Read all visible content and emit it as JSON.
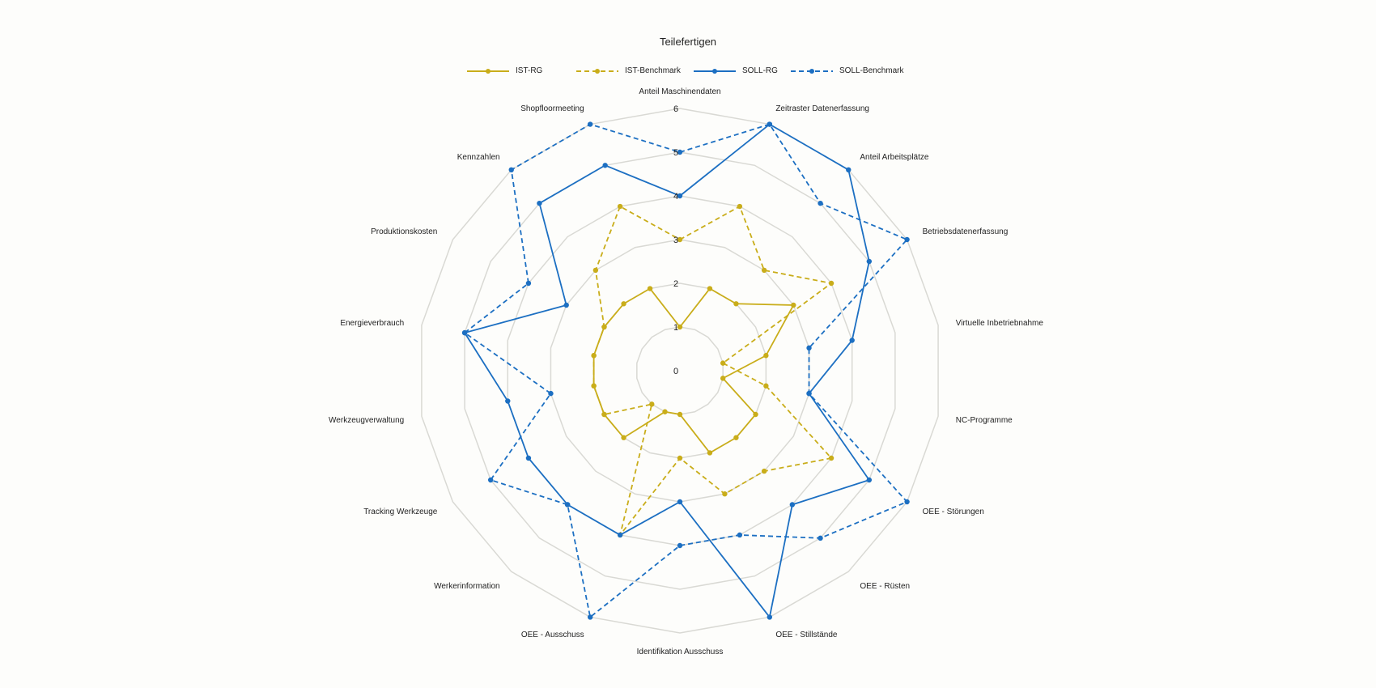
{
  "chart_data": {
    "type": "radar",
    "title": "Teilefertigen",
    "legend_position": "top",
    "grid": true,
    "rlim": [
      0,
      6
    ],
    "ticks": [
      "0",
      "1",
      "2",
      "3",
      "4",
      "5",
      "6"
    ],
    "categories": [
      "Anteil Maschinendaten",
      "Zeitraster Datenerfassung",
      "Anteil Arbeitsplätze",
      "Betriebsdatenerfassung",
      "Virtuelle Inbetriebnahme",
      "NC-Programme",
      "OEE - Störungen",
      "OEE - Rüsten",
      "OEE - Stillstände",
      "Identifikation Ausschuss",
      "OEE - Ausschuss",
      "Werkerinformation",
      "Tracking Werkzeuge",
      "Werkzeugverwaltung",
      "Energieverbrauch",
      "Produktionskosten",
      "Kennzahlen",
      "Shopfloormeeting"
    ],
    "series": [
      {
        "name": "IST-RG",
        "color": "#c9ad1a",
        "dash": "solid",
        "values": [
          1,
          2,
          2,
          3,
          2,
          1,
          2,
          2,
          2,
          1,
          1,
          2,
          2,
          2,
          2,
          2,
          2,
          2
        ]
      },
      {
        "name": "IST-Benchmark",
        "color": "#c9ad1a",
        "dash": "dashed",
        "values": [
          3,
          4,
          3,
          4,
          1,
          2,
          4,
          3,
          3,
          2,
          4,
          1,
          2,
          2,
          2,
          2,
          3,
          4
        ]
      },
      {
        "name": "SOLL-RG",
        "color": "#1c6fc2",
        "dash": "solid",
        "values": [
          4,
          6,
          6,
          5,
          4,
          3,
          5,
          4,
          6,
          3,
          4,
          4,
          4,
          4,
          5,
          3,
          5,
          5
        ]
      },
      {
        "name": "SOLL-Benchmark",
        "color": "#1c6fc2",
        "dash": "dashed",
        "values": [
          5,
          6,
          5,
          6,
          3,
          3,
          6,
          5,
          4,
          4,
          6,
          4,
          5,
          3,
          5,
          4,
          6,
          6
        ]
      }
    ]
  }
}
